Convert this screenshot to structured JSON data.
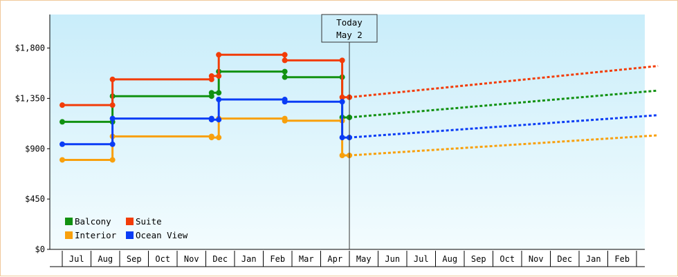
{
  "chart_data": {
    "type": "line",
    "title": "",
    "xlabel": "",
    "ylabel": "",
    "x_tick_labels": [
      "Jul",
      "Aug",
      "Sep",
      "Oct",
      "Nov",
      "Dec",
      "Jan",
      "Feb",
      "Mar",
      "Apr",
      "May",
      "Jun",
      "Jul",
      "Aug",
      "Sep",
      "Oct",
      "Nov",
      "Dec",
      "Jan",
      "Feb"
    ],
    "y_ticks": [
      0,
      450,
      900,
      1350,
      1800
    ],
    "y_tick_labels": [
      "$0",
      "$450",
      "$900",
      "$1,350",
      "$1,800"
    ],
    "ylim": [
      0,
      2100
    ],
    "grid": false,
    "legend_position": "bottom-left",
    "today_marker": {
      "line1": "Today",
      "line2": "May 2",
      "month_index": 10.0
    },
    "background_gradient": [
      "#c9edfa",
      "#f3fcfe"
    ],
    "series": [
      {
        "name": "Balcony",
        "color": "#119111",
        "step_points": [
          [
            0,
            1140
          ],
          [
            1.75,
            1140
          ],
          [
            1.75,
            1370
          ],
          [
            5.2,
            1370
          ],
          [
            5.2,
            1400
          ],
          [
            5.45,
            1400
          ],
          [
            5.45,
            1590
          ],
          [
            7.75,
            1590
          ],
          [
            7.75,
            1540
          ],
          [
            9.75,
            1540
          ],
          [
            9.75,
            1180
          ],
          [
            10.0,
            1180
          ]
        ],
        "markers": [
          [
            0,
            1140
          ],
          [
            1.75,
            1140
          ],
          [
            1.75,
            1370
          ],
          [
            5.2,
            1370
          ],
          [
            5.2,
            1400
          ],
          [
            5.45,
            1400
          ],
          [
            5.45,
            1590
          ],
          [
            7.75,
            1590
          ],
          [
            7.75,
            1540
          ],
          [
            9.75,
            1540
          ],
          [
            9.75,
            1180
          ],
          [
            10.0,
            1180
          ]
        ],
        "projection": [
          [
            10.0,
            1180
          ],
          [
            20.75,
            1420
          ]
        ]
      },
      {
        "name": "Suite",
        "color": "#f23c08",
        "step_points": [
          [
            0,
            1290
          ],
          [
            1.75,
            1290
          ],
          [
            1.75,
            1520
          ],
          [
            5.2,
            1520
          ],
          [
            5.2,
            1550
          ],
          [
            5.45,
            1550
          ],
          [
            5.45,
            1740
          ],
          [
            7.75,
            1740
          ],
          [
            7.75,
            1690
          ],
          [
            9.75,
            1690
          ],
          [
            9.75,
            1360
          ],
          [
            10.0,
            1360
          ]
        ],
        "markers": [
          [
            0,
            1290
          ],
          [
            1.75,
            1290
          ],
          [
            1.75,
            1520
          ],
          [
            5.2,
            1520
          ],
          [
            5.2,
            1550
          ],
          [
            5.45,
            1550
          ],
          [
            5.45,
            1740
          ],
          [
            7.75,
            1740
          ],
          [
            7.75,
            1690
          ],
          [
            9.75,
            1690
          ],
          [
            9.75,
            1360
          ],
          [
            10.0,
            1360
          ]
        ],
        "projection": [
          [
            10.0,
            1360
          ],
          [
            20.75,
            1640
          ]
        ]
      },
      {
        "name": "Interior",
        "color": "#f8a00c",
        "step_points": [
          [
            0,
            800
          ],
          [
            1.75,
            800
          ],
          [
            1.75,
            1010
          ],
          [
            5.2,
            1010
          ],
          [
            5.2,
            1000
          ],
          [
            5.45,
            1000
          ],
          [
            5.45,
            1170
          ],
          [
            7.75,
            1170
          ],
          [
            7.75,
            1150
          ],
          [
            9.75,
            1150
          ],
          [
            9.75,
            840
          ],
          [
            10.0,
            840
          ]
        ],
        "markers": [
          [
            0,
            800
          ],
          [
            1.75,
            800
          ],
          [
            1.75,
            1010
          ],
          [
            5.2,
            1010
          ],
          [
            5.2,
            1000
          ],
          [
            5.45,
            1000
          ],
          [
            5.45,
            1170
          ],
          [
            7.75,
            1170
          ],
          [
            7.75,
            1150
          ],
          [
            9.75,
            1150
          ],
          [
            9.75,
            840
          ],
          [
            10.0,
            840
          ]
        ],
        "projection": [
          [
            10.0,
            840
          ],
          [
            20.75,
            1020
          ]
        ]
      },
      {
        "name": "Ocean View",
        "color": "#0a3cf5",
        "step_points": [
          [
            0,
            940
          ],
          [
            1.75,
            940
          ],
          [
            1.75,
            1170
          ],
          [
            5.2,
            1170
          ],
          [
            5.2,
            1160
          ],
          [
            5.45,
            1160
          ],
          [
            5.45,
            1340
          ],
          [
            7.75,
            1340
          ],
          [
            7.75,
            1320
          ],
          [
            9.75,
            1320
          ],
          [
            9.75,
            1000
          ],
          [
            10.0,
            1000
          ]
        ],
        "markers": [
          [
            0,
            940
          ],
          [
            1.75,
            940
          ],
          [
            1.75,
            1170
          ],
          [
            5.2,
            1170
          ],
          [
            5.2,
            1160
          ],
          [
            5.45,
            1160
          ],
          [
            5.45,
            1340
          ],
          [
            7.75,
            1340
          ],
          [
            7.75,
            1320
          ],
          [
            9.75,
            1320
          ],
          [
            9.75,
            1000
          ],
          [
            10.0,
            1000
          ]
        ],
        "projection": [
          [
            10.0,
            1000
          ],
          [
            20.75,
            1200
          ]
        ]
      }
    ],
    "legend": {
      "rows": [
        [
          "Balcony",
          "Suite"
        ],
        [
          "Interior",
          "Ocean View"
        ]
      ]
    }
  }
}
